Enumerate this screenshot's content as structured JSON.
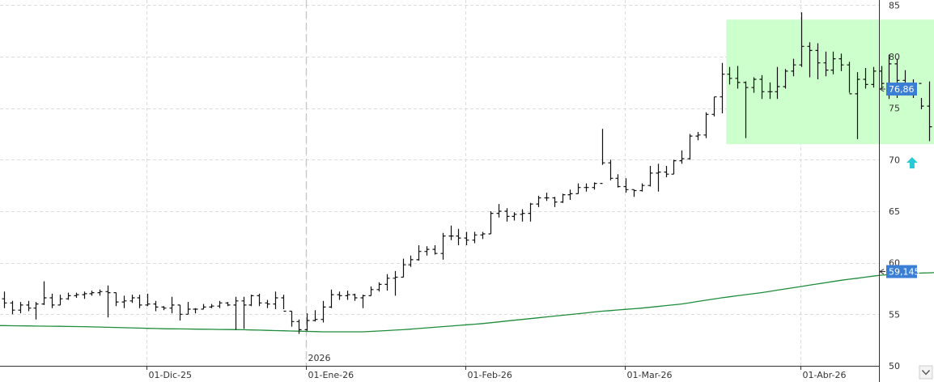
{
  "chart_data": {
    "type": "ohlc",
    "y_ticks": [
      "85",
      "80",
      "75",
      "70",
      "65",
      "60",
      "55",
      "50"
    ],
    "y_tick_values": [
      85,
      80,
      75,
      70,
      65,
      60,
      55,
      50
    ],
    "ylim": [
      50,
      85.5
    ],
    "x_labels": [
      {
        "text": "01-Dic-25",
        "index": 18
      },
      {
        "text": "01-Ene-26",
        "index": 38
      },
      {
        "text": "01-Feb-26",
        "index": 58
      },
      {
        "text": "01-Mar-26",
        "index": 78
      },
      {
        "text": "01-Abr-26",
        "index": 100
      }
    ],
    "year_marker": {
      "text": "2026",
      "index": 38
    },
    "last_price_label": "76,86",
    "last_price": 76.86,
    "ma_label": "59,145",
    "ma_last": 59.145,
    "colors": {
      "bars": "#111111",
      "ma_line": "#1e8c3a",
      "price_tag": "#3a7fd5",
      "highlight_fill": "#ccffcc",
      "arrow": "#29c9d4"
    },
    "highlight_zone": {
      "start_index": 91,
      "end_index": 118,
      "low": 71.5,
      "high": 83.6
    },
    "arrow_marker": {
      "index": 114,
      "value": 69.7,
      "icon": "up-arrow-icon"
    },
    "bars": [
      [
        56.5,
        57.2,
        55.6,
        56.1
      ],
      [
        56.1,
        56.3,
        55.0,
        55.4
      ],
      [
        55.4,
        56.2,
        55.1,
        55.9
      ],
      [
        55.9,
        56.3,
        55.3,
        55.6
      ],
      [
        55.6,
        56.2,
        54.5,
        56.0
      ],
      [
        56.0,
        58.2,
        55.9,
        56.6
      ],
      [
        56.6,
        57.0,
        55.6,
        55.9
      ],
      [
        55.9,
        56.9,
        55.9,
        56.5
      ],
      [
        56.5,
        57.1,
        56.4,
        56.8
      ],
      [
        56.8,
        57.1,
        56.6,
        56.9
      ],
      [
        56.9,
        57.2,
        56.5,
        57.0
      ],
      [
        57.0,
        57.3,
        56.8,
        57.1
      ],
      [
        57.1,
        57.4,
        56.8,
        57.2
      ],
      [
        57.2,
        57.8,
        54.7,
        57.1
      ],
      [
        57.1,
        57.1,
        55.8,
        56.2
      ],
      [
        56.2,
        56.8,
        55.6,
        56.3
      ],
      [
        56.3,
        56.9,
        56.1,
        56.6
      ],
      [
        56.6,
        56.9,
        55.6,
        55.9
      ],
      [
        55.9,
        57.0,
        55.8,
        56.0
      ],
      [
        56.0,
        56.3,
        55.3,
        55.7
      ],
      [
        55.7,
        55.8,
        55.4,
        55.6
      ],
      [
        55.6,
        56.7,
        55.1,
        55.9
      ],
      [
        55.9,
        55.9,
        54.4,
        55.0
      ],
      [
        55.0,
        56.2,
        55.0,
        55.5
      ],
      [
        55.5,
        55.6,
        55.1,
        55.5
      ],
      [
        55.5,
        56.0,
        55.5,
        55.7
      ],
      [
        55.7,
        56.0,
        55.6,
        55.8
      ],
      [
        55.8,
        56.3,
        55.6,
        56.1
      ],
      [
        56.1,
        56.2,
        55.8,
        55.9
      ],
      [
        55.9,
        56.7,
        53.5,
        56.3
      ],
      [
        56.3,
        56.7,
        53.6,
        55.9
      ],
      [
        55.9,
        56.9,
        55.8,
        56.8
      ],
      [
        56.8,
        57.0,
        55.8,
        56.1
      ],
      [
        56.1,
        56.4,
        55.6,
        56.0
      ],
      [
        56.0,
        57.2,
        55.5,
        56.6
      ],
      [
        56.6,
        56.9,
        55.5,
        55.3
      ],
      [
        55.3,
        55.3,
        53.8,
        54.3
      ],
      [
        54.3,
        54.5,
        53.1,
        53.5
      ],
      [
        53.5,
        55.1,
        53.4,
        54.4
      ],
      [
        54.4,
        55.4,
        54.3,
        54.5
      ],
      [
        54.5,
        56.3,
        54.2,
        55.7
      ],
      [
        55.7,
        57.4,
        55.6,
        56.9
      ],
      [
        56.9,
        57.2,
        56.4,
        56.8
      ],
      [
        56.8,
        57.3,
        56.4,
        56.9
      ],
      [
        56.9,
        57.0,
        56.3,
        56.6
      ],
      [
        56.6,
        56.9,
        55.6,
        56.8
      ],
      [
        56.8,
        57.7,
        56.8,
        57.4
      ],
      [
        57.4,
        58.1,
        57.2,
        57.9
      ],
      [
        57.9,
        58.9,
        57.3,
        58.5
      ],
      [
        58.5,
        59.2,
        56.8,
        58.6
      ],
      [
        58.6,
        60.4,
        58.6,
        59.8
      ],
      [
        59.8,
        60.7,
        59.6,
        60.3
      ],
      [
        60.3,
        61.7,
        60.2,
        61.1
      ],
      [
        61.1,
        61.6,
        60.7,
        61.3
      ],
      [
        61.3,
        61.7,
        60.8,
        60.9
      ],
      [
        60.9,
        62.9,
        60.3,
        62.6
      ],
      [
        62.6,
        63.6,
        62.2,
        62.6
      ],
      [
        62.6,
        63.3,
        61.7,
        62.4
      ],
      [
        62.4,
        63.0,
        61.7,
        62.2
      ],
      [
        62.2,
        63.0,
        61.9,
        62.7
      ],
      [
        62.7,
        63.0,
        62.3,
        62.8
      ],
      [
        62.8,
        65.0,
        62.8,
        64.8
      ],
      [
        64.8,
        65.7,
        64.4,
        65.0
      ],
      [
        65.0,
        65.3,
        64.0,
        64.5
      ],
      [
        64.5,
        64.9,
        64.1,
        64.7
      ],
      [
        64.7,
        65.2,
        64.0,
        64.8
      ],
      [
        64.8,
        65.8,
        64.0,
        65.7
      ],
      [
        65.7,
        66.5,
        65.4,
        66.3
      ],
      [
        66.3,
        66.8,
        66.0,
        66.3
      ],
      [
        66.3,
        66.4,
        65.4,
        65.9
      ],
      [
        65.9,
        66.7,
        65.8,
        66.6
      ],
      [
        66.6,
        67.1,
        66.1,
        66.7
      ],
      [
        66.7,
        67.7,
        66.7,
        67.3
      ],
      [
        67.3,
        67.7,
        66.9,
        67.3
      ],
      [
        67.3,
        67.8,
        67.1,
        67.7
      ],
      [
        67.7,
        73.0,
        69.5,
        69.7
      ],
      [
        69.7,
        70.0,
        68.0,
        68.2
      ],
      [
        68.2,
        68.6,
        67.3,
        67.4
      ],
      [
        67.4,
        68.2,
        66.8,
        67.1
      ],
      [
        67.1,
        67.1,
        66.4,
        67.0
      ],
      [
        67.0,
        67.7,
        66.9,
        67.5
      ],
      [
        67.5,
        69.4,
        67.4,
        68.7
      ],
      [
        68.7,
        69.6,
        66.9,
        68.8
      ],
      [
        68.8,
        69.4,
        68.3,
        68.6
      ],
      [
        68.6,
        70.0,
        68.6,
        69.9
      ],
      [
        69.9,
        70.9,
        69.6,
        70.1
      ],
      [
        70.1,
        72.5,
        70.0,
        72.3
      ],
      [
        72.3,
        72.7,
        71.9,
        72.4
      ],
      [
        72.4,
        74.6,
        72.1,
        74.4
      ],
      [
        74.4,
        76.1,
        74.2,
        76.1
      ],
      [
        76.1,
        79.4,
        74.5,
        78.3
      ],
      [
        78.3,
        79.0,
        77.3,
        77.9
      ],
      [
        77.9,
        79.1,
        76.9,
        77.5
      ],
      [
        77.5,
        77.6,
        72.1,
        77.0
      ],
      [
        77.0,
        78.0,
        76.5,
        77.8
      ],
      [
        77.8,
        78.2,
        75.9,
        76.6
      ],
      [
        76.6,
        77.5,
        75.9,
        76.6
      ],
      [
        76.6,
        79.0,
        75.9,
        77.1
      ],
      [
        77.1,
        78.8,
        76.9,
        78.6
      ],
      [
        78.6,
        79.8,
        78.1,
        79.2
      ],
      [
        79.2,
        84.3,
        79.0,
        81.0
      ],
      [
        81.0,
        81.4,
        78.0,
        80.6
      ],
      [
        80.6,
        81.3,
        77.8,
        79.4
      ],
      [
        79.4,
        80.5,
        78.1,
        78.7
      ],
      [
        78.7,
        80.5,
        78.3,
        79.8
      ],
      [
        79.8,
        80.3,
        78.6,
        79.2
      ],
      [
        79.2,
        79.5,
        76.5,
        76.4
      ],
      [
        76.4,
        78.5,
        72.0,
        77.8
      ],
      [
        77.8,
        78.9,
        76.9,
        77.3
      ],
      [
        77.3,
        79.0,
        77.0,
        78.6
      ],
      [
        78.6,
        79.1,
        76.9,
        77.4
      ],
      [
        77.4,
        80.2,
        75.9,
        79.3
      ],
      [
        79.3,
        79.8,
        76.0,
        77.7
      ],
      [
        77.7,
        78.7,
        76.6,
        77.3
      ],
      [
        77.3,
        77.8,
        76.0,
        77.4
      ],
      [
        77.4,
        76.0,
        74.9,
        75.2
      ],
      [
        75.2,
        77.6,
        71.8,
        73.2
      ],
      [
        73.2,
        78.2,
        74.2,
        75.1
      ],
      [
        75.1,
        78.1,
        74.2,
        76.4
      ],
      [
        76.4,
        77.3,
        75.3,
        76.1
      ],
      [
        76.1,
        77.3,
        75.2,
        76.6
      ],
      [
        76.6,
        78.3,
        76.6,
        76.86
      ]
    ],
    "ma_series": {
      "indices": [
        0,
        10,
        20,
        30,
        40,
        45,
        50,
        55,
        60,
        65,
        70,
        75,
        80,
        85,
        90,
        95,
        100,
        105,
        110,
        115,
        121
      ],
      "values": [
        53.9,
        53.8,
        53.6,
        53.5,
        53.3,
        53.3,
        53.5,
        53.8,
        54.1,
        54.5,
        54.9,
        55.3,
        55.6,
        56.0,
        56.6,
        57.1,
        57.7,
        58.3,
        58.8,
        59.0,
        59.145
      ]
    }
  }
}
